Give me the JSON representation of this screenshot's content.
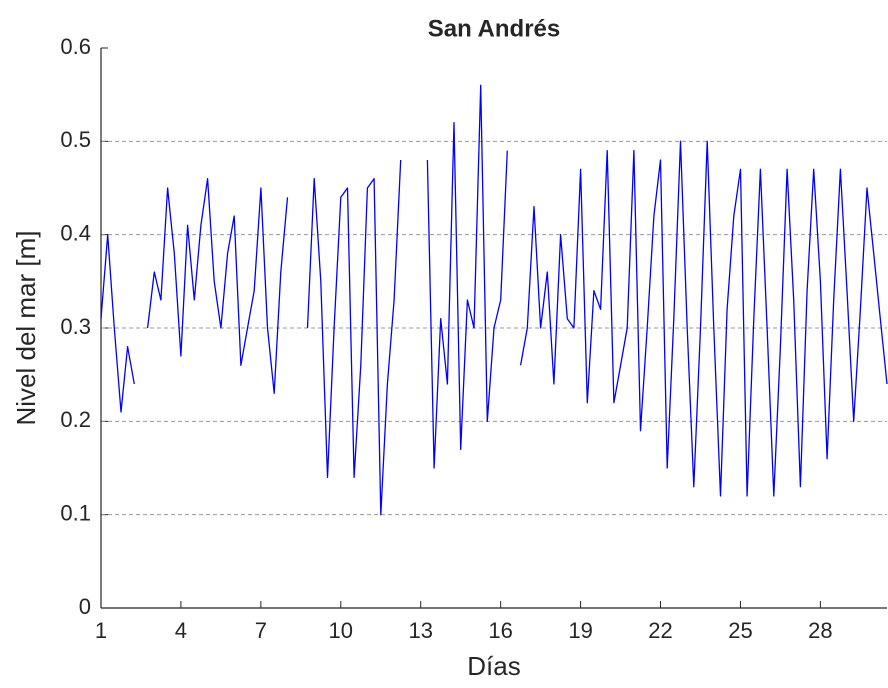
{
  "chart_data": {
    "type": "line",
    "title": "San Andrés",
    "xlabel": "Días",
    "ylabel": "Nivel del mar [m]",
    "x": [
      1,
      1.25,
      1.5,
      1.75,
      2,
      2.25,
      2.5,
      2.75,
      3,
      3.25,
      3.5,
      3.75,
      4,
      4.25,
      4.5,
      4.75,
      5,
      5.25,
      5.5,
      5.75,
      6,
      6.25,
      6.5,
      6.75,
      7,
      7.25,
      7.5,
      7.75,
      8,
      8.25,
      8.5,
      8.75,
      9,
      9.25,
      9.5,
      9.75,
      10,
      10.25,
      10.5,
      10.75,
      11,
      11.25,
      11.5,
      11.75,
      12,
      12.25,
      12.5,
      12.75,
      13,
      13.25,
      13.5,
      13.75,
      14,
      14.25,
      14.5,
      14.75,
      15,
      15.25,
      15.5,
      15.75,
      16,
      16.25,
      16.5,
      16.75,
      17,
      17.25,
      17.5,
      17.75,
      18,
      18.25,
      18.5,
      18.75,
      19,
      19.25,
      19.5,
      19.75,
      20,
      20.25,
      20.5,
      20.75,
      21,
      21.25,
      21.5,
      21.75,
      22,
      22.25,
      22.5,
      22.75,
      23,
      23.25,
      23.5,
      23.75,
      24,
      24.25,
      24.5,
      24.75,
      25,
      25.25,
      25.5,
      25.75,
      26,
      26.25,
      26.5,
      26.75,
      27,
      27.25,
      27.5,
      27.75,
      28,
      28.25,
      28.5,
      28.75,
      29,
      29.25,
      29.5,
      29.75,
      30,
      30.25,
      30.5
    ],
    "values": [
      0.31,
      0.4,
      0.3,
      0.21,
      0.28,
      0.24,
      null,
      0.3,
      0.36,
      0.33,
      0.45,
      0.38,
      0.27,
      0.41,
      0.33,
      0.41,
      0.46,
      0.35,
      0.3,
      0.38,
      0.42,
      0.26,
      0.3,
      0.34,
      0.45,
      0.3,
      0.23,
      0.36,
      0.44,
      null,
      null,
      0.3,
      0.46,
      0.35,
      0.14,
      0.3,
      0.44,
      0.45,
      0.14,
      0.26,
      0.45,
      0.46,
      0.1,
      0.24,
      0.33,
      0.48,
      null,
      0.22,
      null,
      0.48,
      0.15,
      0.31,
      0.24,
      0.52,
      0.17,
      0.33,
      0.3,
      0.56,
      0.2,
      0.3,
      0.33,
      0.49,
      null,
      0.26,
      0.3,
      0.43,
      0.3,
      0.36,
      0.24,
      0.4,
      0.31,
      0.3,
      0.47,
      0.22,
      0.34,
      0.32,
      0.49,
      0.22,
      0.26,
      0.3,
      0.49,
      0.19,
      0.3,
      0.42,
      0.48,
      0.15,
      0.31,
      0.5,
      0.3,
      0.13,
      0.3,
      0.5,
      0.3,
      0.12,
      0.32,
      0.42,
      0.47,
      0.12,
      0.31,
      0.47,
      0.3,
      0.12,
      0.28,
      0.47,
      0.33,
      0.13,
      0.34,
      0.47,
      0.35,
      0.16,
      0.33,
      0.47,
      0.34,
      0.2,
      0.32,
      0.45,
      0.38,
      0.31,
      0.24
    ],
    "color": "#0000ff",
    "xlim": [
      1,
      30.5
    ],
    "xticks": [
      1,
      4,
      7,
      10,
      13,
      16,
      19,
      22,
      25,
      28
    ],
    "ylim": [
      0,
      0.6
    ],
    "yticks": [
      0,
      0.1,
      0.2,
      0.3,
      0.4,
      0.5,
      0.6
    ],
    "grid": true
  }
}
